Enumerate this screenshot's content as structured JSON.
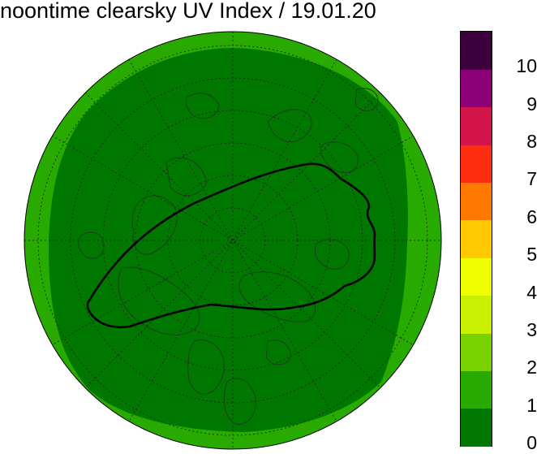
{
  "title": "noontime clearsky UV Index / 19.01.20",
  "legend": {
    "labels": [
      "0",
      "1",
      "2",
      "3",
      "4",
      "5",
      "6",
      "7",
      "8",
      "9",
      "10"
    ],
    "colors": [
      "#007800",
      "#28aa00",
      "#78d200",
      "#c8f000",
      "#f0ff00",
      "#ffc800",
      "#ff7800",
      "#ff2d10",
      "#d2144b",
      "#8c0078",
      "#3c003c"
    ]
  },
  "map": {
    "projection": "north polar stereographic",
    "colors": {
      "outer_ring": "#28aa00",
      "inner_zone": "#007800",
      "contour": "#000000",
      "coastline": "#1e3c1e",
      "graticule": "#1a1a1a"
    },
    "icons": [
      "north-polar-map",
      "uv-contour-line",
      "coastlines",
      "graticule"
    ]
  }
}
